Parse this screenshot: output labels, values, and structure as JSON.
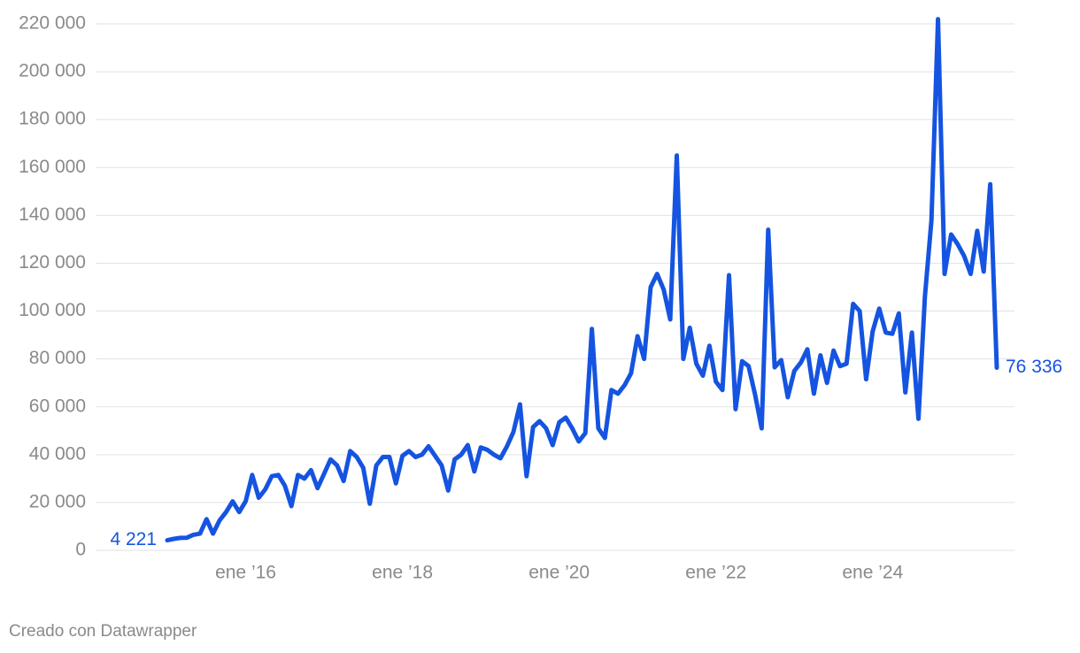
{
  "chart_data": {
    "type": "line",
    "x": [
      "2015-01",
      "2015-02",
      "2015-03",
      "2015-04",
      "2015-05",
      "2015-06",
      "2015-07",
      "2015-08",
      "2015-09",
      "2015-10",
      "2015-11",
      "2015-12",
      "2016-01",
      "2016-02",
      "2016-03",
      "2016-04",
      "2016-05",
      "2016-06",
      "2016-07",
      "2016-08",
      "2016-09",
      "2016-10",
      "2016-11",
      "2016-12",
      "2017-01",
      "2017-02",
      "2017-03",
      "2017-04",
      "2017-05",
      "2017-06",
      "2017-07",
      "2017-08",
      "2017-09",
      "2017-10",
      "2017-11",
      "2017-12",
      "2018-01",
      "2018-02",
      "2018-03",
      "2018-04",
      "2018-05",
      "2018-06",
      "2018-07",
      "2018-08",
      "2018-09",
      "2018-10",
      "2018-11",
      "2018-12",
      "2019-01",
      "2019-02",
      "2019-03",
      "2019-04",
      "2019-05",
      "2019-06",
      "2019-07",
      "2019-08",
      "2019-09",
      "2019-10",
      "2019-11",
      "2019-12",
      "2020-01",
      "2020-02",
      "2020-03",
      "2020-04",
      "2020-05",
      "2020-06",
      "2020-07",
      "2020-08",
      "2020-09",
      "2020-10",
      "2020-11",
      "2020-12",
      "2021-01",
      "2021-02",
      "2021-03",
      "2021-04",
      "2021-05",
      "2021-06",
      "2021-07",
      "2021-08",
      "2021-09",
      "2021-10",
      "2021-11",
      "2021-12",
      "2022-01",
      "2022-02",
      "2022-03",
      "2022-04",
      "2022-05",
      "2022-06",
      "2022-07",
      "2022-08",
      "2022-09",
      "2022-10",
      "2022-11",
      "2022-12",
      "2023-01",
      "2023-02",
      "2023-03",
      "2023-04",
      "2023-05",
      "2023-06",
      "2023-07",
      "2023-08",
      "2023-09",
      "2023-10",
      "2023-11",
      "2023-12",
      "2024-01",
      "2024-02",
      "2024-03",
      "2024-04",
      "2024-05",
      "2024-06",
      "2024-07",
      "2024-08",
      "2024-09",
      "2024-10",
      "2024-11",
      "2024-12",
      "2025-01",
      "2025-02",
      "2025-03",
      "2025-04",
      "2025-05",
      "2025-06",
      "2025-07",
      "2025-08"
    ],
    "series": [
      {
        "color": "#1554e0",
        "values": [
          4221,
          4800,
          5200,
          5300,
          6500,
          7000,
          13000,
          7000,
          12500,
          16000,
          20500,
          16000,
          20500,
          31500,
          22000,
          25500,
          31000,
          31500,
          27000,
          18500,
          31500,
          30000,
          33500,
          26000,
          32000,
          38000,
          35500,
          29000,
          41500,
          39000,
          34500,
          19500,
          35500,
          39000,
          39000,
          28000,
          39500,
          41500,
          39000,
          40000,
          43500,
          39500,
          35500,
          25000,
          38000,
          40000,
          44000,
          33000,
          43000,
          42000,
          40000,
          38500,
          43500,
          49500,
          61000,
          31000,
          51500,
          54000,
          51000,
          44000,
          53500,
          55500,
          51000,
          45500,
          49000,
          92500,
          51000,
          47000,
          67000,
          65500,
          69000,
          74000,
          89500,
          80000,
          110000,
          115500,
          109000,
          96500,
          165000,
          80000,
          93000,
          78000,
          73000,
          85500,
          70500,
          67000,
          115000,
          59000,
          79000,
          77000,
          65000,
          51000,
          134000,
          76500,
          79500,
          64000,
          75000,
          78500,
          84000,
          65500,
          81500,
          70000,
          83500,
          77000,
          78000,
          103000,
          100000,
          71500,
          91500,
          101000,
          91000,
          90500,
          99000,
          66000,
          91000,
          55000,
          106000,
          138000,
          222000,
          115500,
          132000,
          128000,
          123000,
          115500,
          133500,
          116500,
          153000,
          76336
        ]
      }
    ],
    "annotations": [
      {
        "x": "2015-01",
        "label": "4 221"
      },
      {
        "x": "2025-08",
        "label": "76 336"
      }
    ],
    "xlim": [
      "2015-01",
      "2025-08"
    ],
    "xticks": [
      {
        "value": "2016-01",
        "label": "ene ’16"
      },
      {
        "value": "2018-01",
        "label": "ene ’18"
      },
      {
        "value": "2020-01",
        "label": "ene ’20"
      },
      {
        "value": "2022-01",
        "label": "ene ’22"
      },
      {
        "value": "2024-01",
        "label": "ene ’24"
      }
    ],
    "ylim": [
      0,
      220000
    ],
    "yticks": [
      0,
      {
        "value": 20000,
        "label": "20 000"
      },
      {
        "value": 40000,
        "label": "40 000"
      },
      {
        "value": 60000,
        "label": "60 000"
      },
      {
        "value": 80000,
        "label": "80 000"
      },
      {
        "value": 100000,
        "label": "100 000"
      },
      {
        "value": 120000,
        "label": "120 000"
      },
      {
        "value": 140000,
        "label": "140 000"
      },
      {
        "value": 160000,
        "label": "160 000"
      },
      {
        "value": 180000,
        "label": "180 000"
      },
      {
        "value": 200000,
        "label": "200 000"
      },
      {
        "value": 220000,
        "label": "220 000"
      }
    ],
    "grid": true,
    "credit": "Creado con Datawrapper"
  }
}
